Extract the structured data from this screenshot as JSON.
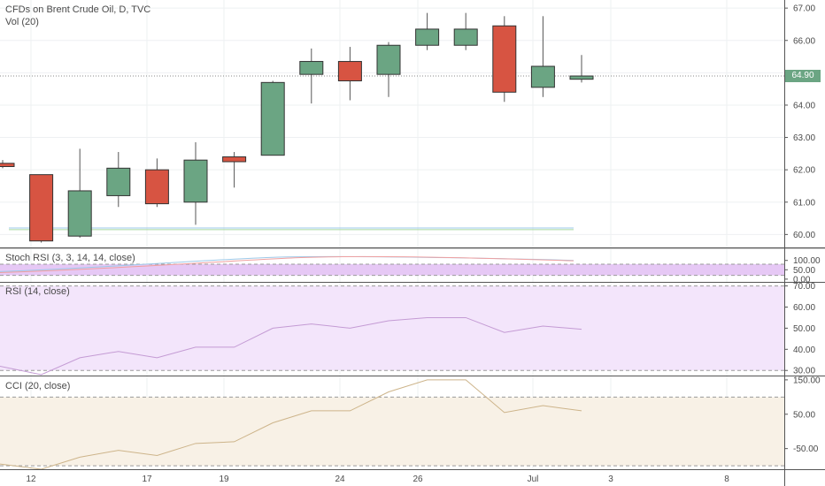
{
  "title": "CFDs on Brent Crude Oil, D, TVC",
  "volume_label": "Vol (20)",
  "last_price_label": "64.90",
  "colors": {
    "up": "#6ba583",
    "down": "#d75442",
    "wick": "#555555",
    "price_tag": "#6ba583",
    "rsi_line": "#c49bd4",
    "cci_line": "#cdb48a",
    "stoch_band": "#e6c8f5",
    "rsi_band": "#f3e5fb",
    "cci_band": "#f8f1e6"
  },
  "chart_data": [
    {
      "type": "candlestick",
      "title": "CFDs on Brent Crude Oil, D, TVC",
      "x_ticks": [
        "12",
        "17",
        "19",
        "24",
        "26",
        "Jul",
        "3",
        "8"
      ],
      "y_ticks": [
        "60.00",
        "61.00",
        "62.00",
        "63.00",
        "64.00",
        "65.00",
        "66.00",
        "67.00"
      ],
      "ylim": [
        59.6,
        67.25
      ],
      "last_price": 64.9,
      "candles": [
        {
          "open": 62.2,
          "high": 62.3,
          "low": 62.05,
          "close": 62.1
        },
        {
          "open": 61.85,
          "high": 61.85,
          "low": 59.75,
          "close": 59.8
        },
        {
          "open": 59.95,
          "high": 62.65,
          "low": 59.9,
          "close": 61.35
        },
        {
          "open": 61.2,
          "high": 62.55,
          "low": 60.85,
          "close": 62.05
        },
        {
          "open": 62.0,
          "high": 62.35,
          "low": 60.85,
          "close": 60.95
        },
        {
          "open": 61.0,
          "high": 62.85,
          "low": 60.3,
          "close": 62.3
        },
        {
          "open": 62.4,
          "high": 62.55,
          "low": 61.45,
          "close": 62.25
        },
        {
          "open": 62.45,
          "high": 64.75,
          "low": 62.45,
          "close": 64.7
        },
        {
          "open": 64.95,
          "high": 65.75,
          "low": 64.05,
          "close": 65.35
        },
        {
          "open": 65.35,
          "high": 65.8,
          "low": 64.15,
          "close": 64.75
        },
        {
          "open": 64.95,
          "high": 65.95,
          "low": 64.25,
          "close": 65.85
        },
        {
          "open": 65.85,
          "high": 66.85,
          "low": 65.7,
          "close": 66.35
        },
        {
          "open": 65.85,
          "high": 66.85,
          "low": 65.7,
          "close": 66.35
        },
        {
          "open": 66.45,
          "high": 66.75,
          "low": 64.1,
          "close": 64.4
        },
        {
          "open": 64.55,
          "high": 66.75,
          "low": 64.25,
          "close": 65.2
        },
        {
          "open": 64.8,
          "high": 65.55,
          "low": 64.7,
          "close": 64.9
        }
      ]
    },
    {
      "type": "line",
      "title": "Stoch RSI (3, 3, 14, 14, close)",
      "y_ticks": [
        "100.00",
        "50.00",
        "0.00"
      ],
      "ylim": [
        -10,
        160
      ],
      "bands": [
        80,
        20
      ]
    },
    {
      "type": "line",
      "title": "RSI (14, close)",
      "y_ticks": [
        "70.00",
        "60.00",
        "50.00",
        "40.00",
        "30.00"
      ],
      "ylim": [
        28,
        71.5
      ],
      "bands": [
        70,
        30
      ],
      "values": [
        32,
        28,
        36,
        39,
        36,
        41,
        41,
        50,
        52,
        50,
        53.5,
        55,
        55,
        48,
        51,
        49.5
      ]
    },
    {
      "type": "line",
      "title": "CCI (20, close)",
      "y_ticks": [
        "150.00",
        "50.00",
        "-50.00"
      ],
      "ylim": [
        -110,
        160
      ],
      "bands": [
        100,
        -100
      ],
      "values": [
        -95,
        -110,
        -75,
        -55,
        -70,
        -35,
        -30,
        25,
        60,
        60,
        115,
        150,
        150,
        55,
        75,
        60
      ]
    }
  ]
}
